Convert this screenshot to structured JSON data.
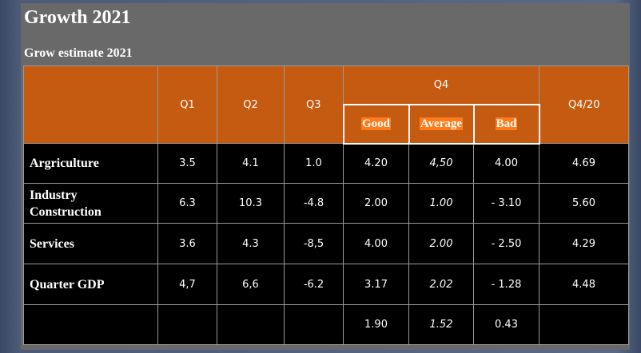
{
  "slide": {
    "title": "Growth 2021",
    "caption": "Grow estimate 2021"
  },
  "table": {
    "headers": {
      "q1": "Q1",
      "q2": "Q2",
      "q3": "Q3",
      "q4": "Q4",
      "good": "Good",
      "average": "Average",
      "bad": "Bad",
      "q4_20": "Q4/20"
    },
    "rows": [
      {
        "label_line1": "Argriculture",
        "label_line2": "",
        "q1": "3.5",
        "q2": "4.1",
        "q3": "1.0",
        "good": "4.20",
        "average": "4,50",
        "bad": "4.00",
        "q4_20": "4.69"
      },
      {
        "label_line1": "Industry",
        "label_line2": "Construction",
        "q1": "6.3",
        "q2": "10.3",
        "q3": "-4.8",
        "good": "2.00",
        "average": "1.00",
        "bad": "- 3.10",
        "q4_20": "5.60"
      },
      {
        "label_line1": "Services",
        "label_line2": "",
        "q1": "3.6",
        "q2": "4.3",
        "q3": "-8,5",
        "good": "4.00",
        "average": "2.00",
        "bad": "- 2.50",
        "q4_20": "4.29"
      },
      {
        "label_line1": "Quarter GDP",
        "label_line2": "",
        "q1": "4,7",
        "q2": "6,6",
        "q3": "-6.2",
        "good": "3.17",
        "average": "2.02",
        "bad": "- 1.28",
        "q4_20": "4.48"
      },
      {
        "label_line1": "",
        "label_line2": "",
        "q1": "",
        "q2": "",
        "q3": "",
        "good": "1.90",
        "average": "1.52",
        "bad": "0.43",
        "q4_20": ""
      }
    ]
  },
  "colors": {
    "header_bg": "#c55a11",
    "highlight": "#ff7a1a",
    "slide_bg": "#696969",
    "body_bg": "#000000"
  }
}
